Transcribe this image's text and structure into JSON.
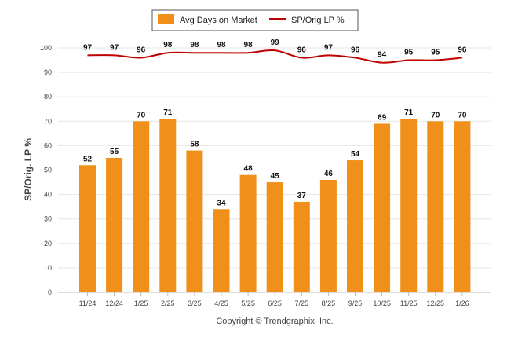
{
  "chart_data": {
    "type": "bar",
    "categories": [
      "11/24",
      "12/24",
      "1/25",
      "2/25",
      "3/25",
      "4/25",
      "5/25",
      "6/25",
      "7/25",
      "8/25",
      "9/25",
      "10/25",
      "11/25",
      "12/25",
      "1/26"
    ],
    "series": [
      {
        "name": "Avg Days on Market",
        "kind": "bar",
        "values": [
          52,
          55,
          70,
          71,
          58,
          34,
          48,
          45,
          37,
          46,
          54,
          69,
          71,
          70,
          70
        ]
      },
      {
        "name": "SP/Orig LP %",
        "kind": "line",
        "values": [
          97,
          97,
          96,
          98,
          98,
          98,
          98,
          99,
          96,
          97,
          96,
          94,
          95,
          95,
          96
        ]
      }
    ],
    "ylabel": "SP/Orig. LP %",
    "ylim": [
      0,
      100
    ],
    "yticks": [
      0,
      10,
      20,
      30,
      40,
      50,
      60,
      70,
      80,
      90,
      100
    ],
    "grid": true,
    "legend_position": "top-center",
    "bar_color": "#F0901A",
    "line_color": "#C00000"
  },
  "footer": {
    "copyright": "Copyright © Trendgraphix, Inc."
  }
}
